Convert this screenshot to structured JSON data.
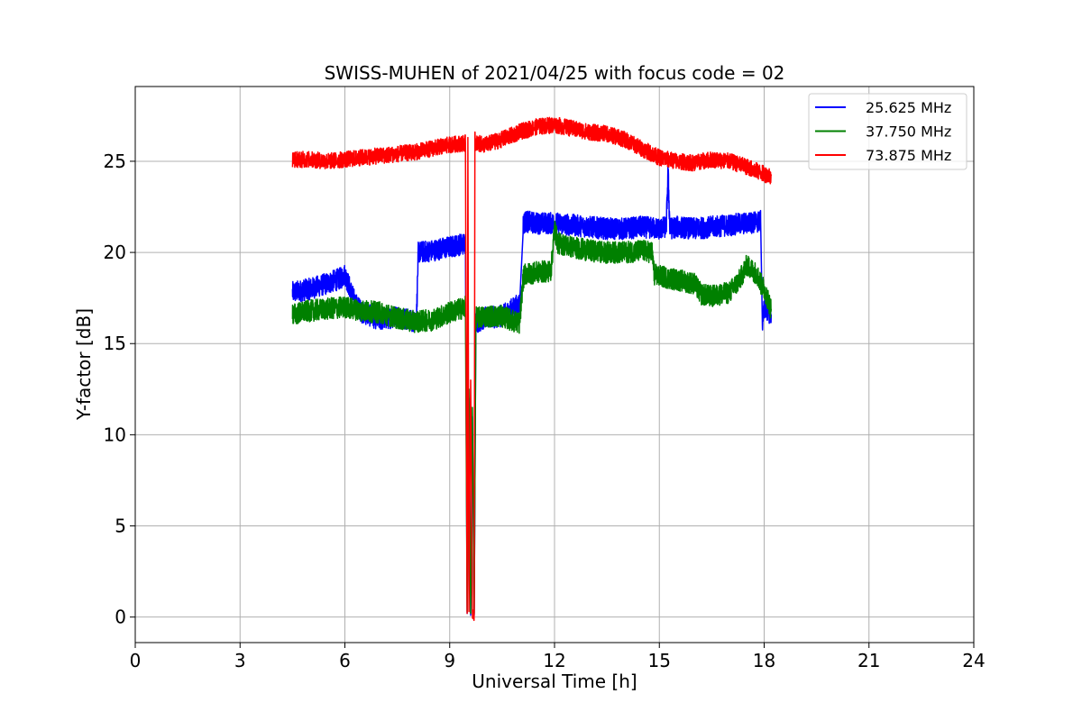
{
  "chart_data": {
    "type": "line",
    "title": "SWISS-MUHEN of 2021/04/25 with focus code = 02",
    "xlabel": "Universal Time [h]",
    "ylabel": "Y-factor [dB]",
    "xlim": [
      0,
      24
    ],
    "ylim": [
      -1.4,
      29.1
    ],
    "xticks": [
      0,
      3,
      6,
      9,
      12,
      15,
      18,
      21,
      24
    ],
    "yticks": [
      0,
      5,
      10,
      15,
      20,
      25
    ],
    "grid": true,
    "legend_position": "top-right",
    "series": [
      {
        "name": "25.625 MHz",
        "color": "#0000ff",
        "noise": 0.6,
        "x": [
          4.5,
          5.0,
          5.5,
          5.9,
          6.0,
          6.3,
          6.5,
          7.0,
          7.5,
          8.0,
          8.05,
          8.1,
          8.5,
          9.0,
          9.45,
          9.5,
          9.55,
          9.6,
          9.65,
          9.7,
          9.75,
          9.8,
          10.0,
          10.5,
          11.0,
          11.1,
          11.15,
          11.5,
          12.0,
          12.5,
          13.0,
          13.5,
          14.0,
          14.5,
          15.0,
          15.2,
          15.25,
          15.3,
          15.5,
          16.0,
          16.5,
          17.0,
          17.5,
          17.9,
          17.95,
          18.0,
          18.2
        ],
        "y": [
          17.8,
          18.0,
          18.3,
          18.6,
          18.8,
          17.2,
          16.7,
          16.3,
          16.5,
          16.2,
          16.4,
          20.0,
          20.1,
          20.3,
          20.5,
          0.2,
          12.0,
          0.1,
          11.0,
          0.1,
          16.3,
          16.2,
          16.4,
          16.5,
          17.2,
          21.5,
          21.7,
          21.6,
          21.6,
          21.5,
          21.4,
          21.3,
          21.3,
          21.4,
          21.3,
          21.4,
          24.5,
          21.3,
          21.4,
          21.3,
          21.4,
          21.5,
          21.6,
          21.7,
          16.2,
          17.0,
          16.6
        ]
      },
      {
        "name": "37.750 MHz",
        "color": "#008000",
        "noise": 0.6,
        "x": [
          4.5,
          5.0,
          5.5,
          6.0,
          6.5,
          7.0,
          7.5,
          8.0,
          8.5,
          9.0,
          9.45,
          9.5,
          9.55,
          9.6,
          9.65,
          9.7,
          9.75,
          9.8,
          10.0,
          10.5,
          11.0,
          11.1,
          11.15,
          11.5,
          11.9,
          12.0,
          12.1,
          12.5,
          13.0,
          13.5,
          14.0,
          14.5,
          14.8,
          14.85,
          15.0,
          15.5,
          16.0,
          16.2,
          16.5,
          17.0,
          17.3,
          17.5,
          17.8,
          17.9,
          18.0,
          18.2
        ],
        "y": [
          16.6,
          16.8,
          16.9,
          17.0,
          16.8,
          16.7,
          16.4,
          16.2,
          16.3,
          16.7,
          17.0,
          0.3,
          12.5,
          0.2,
          11.5,
          0.2,
          16.5,
          16.4,
          16.5,
          16.5,
          16.1,
          18.5,
          18.8,
          18.9,
          19.0,
          21.3,
          20.5,
          20.3,
          20.1,
          20.0,
          20.0,
          20.1,
          20.0,
          18.8,
          18.7,
          18.5,
          18.3,
          17.7,
          17.6,
          17.8,
          18.5,
          19.3,
          18.8,
          18.3,
          18.0,
          16.9
        ]
      },
      {
        "name": "73.875 MHz",
        "color": "#ff0000",
        "noise": 0.45,
        "x": [
          4.5,
          5.0,
          5.5,
          6.0,
          6.5,
          7.0,
          7.5,
          8.0,
          8.5,
          9.0,
          9.45,
          9.5,
          9.52,
          9.55,
          9.6,
          9.65,
          9.7,
          9.72,
          9.75,
          10.0,
          10.5,
          11.0,
          11.5,
          12.0,
          12.5,
          13.0,
          13.5,
          14.0,
          14.5,
          15.0,
          15.5,
          16.0,
          16.5,
          17.0,
          17.5,
          18.0,
          18.2
        ],
        "y": [
          25.1,
          25.1,
          25.0,
          25.1,
          25.2,
          25.3,
          25.4,
          25.5,
          25.7,
          25.9,
          26.0,
          0.2,
          26.3,
          0.3,
          13.0,
          0.3,
          0.2,
          26.2,
          26.0,
          25.9,
          26.2,
          26.6,
          26.9,
          27.0,
          26.8,
          26.6,
          26.5,
          26.2,
          25.7,
          25.2,
          25.0,
          24.9,
          25.1,
          25.0,
          24.7,
          24.3,
          24.2
        ]
      }
    ]
  }
}
